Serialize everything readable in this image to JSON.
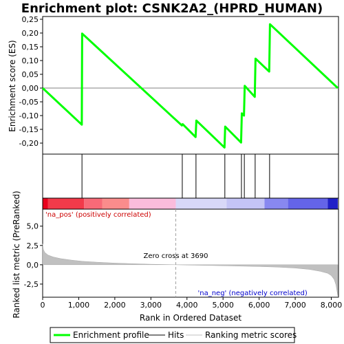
{
  "chart_data": {
    "type": "line",
    "title": "Enrichment plot: CSNK2A2_(HPRD_HUMAN)",
    "xlabel": "Rank in Ordered Dataset",
    "ylabel_top": "Enrichment score (ES)",
    "ylabel_bottom": "Ranked list metric (PreRanked)",
    "x_ticks": [
      "0",
      "1,000",
      "2,000",
      "3,000",
      "4,000",
      "5,000",
      "6,000",
      "7,000",
      "8,000"
    ],
    "x_tick_values": [
      0,
      1000,
      2000,
      3000,
      4000,
      5000,
      6000,
      7000,
      8000
    ],
    "xlim": [
      0,
      8200
    ],
    "es_ylim": [
      -0.24,
      0.26
    ],
    "es_ticks": [
      "0,25",
      "0,20",
      "0,15",
      "0,10",
      "0,05",
      "0,00",
      "-0,05",
      "-0,10",
      "-0,15",
      "-0,20"
    ],
    "es_tick_values": [
      0.25,
      0.2,
      0.15,
      0.1,
      0.05,
      0.0,
      -0.05,
      -0.1,
      -0.15,
      -0.2
    ],
    "metric_ylim": [
      -4.2,
      7.2
    ],
    "metric_ticks": [
      "5,0",
      "2,5",
      "0,0",
      "-2,5"
    ],
    "metric_tick_values": [
      5.0,
      2.5,
      0.0,
      -2.5
    ],
    "series": [
      {
        "name": "Enrichment profile",
        "color": "#00ff00",
        "x": [
          0,
          1085,
          1095,
          3860,
          3880,
          4240,
          4260,
          5040,
          5060,
          5500,
          5520,
          5580,
          5600,
          5880,
          5900,
          6280,
          6300,
          8180
        ],
        "y": [
          0.0,
          -0.133,
          0.198,
          -0.136,
          -0.131,
          -0.178,
          -0.118,
          -0.216,
          -0.14,
          -0.198,
          -0.092,
          -0.1,
          0.008,
          -0.032,
          0.107,
          0.06,
          0.232,
          0.0
        ]
      }
    ],
    "hits": [
      1090,
      3870,
      4250,
      5050,
      5510,
      5590,
      5890,
      6290
    ],
    "hit_color": "#000000",
    "metric_color": "#c0c0c0",
    "metric_points": {
      "x": [
        0,
        20,
        60,
        150,
        300,
        500,
        800,
        1100,
        1500,
        2000,
        2500,
        3000,
        3690,
        4200,
        5000,
        5500,
        6000,
        6500,
        7000,
        7400,
        7700,
        7900,
        8000,
        8080,
        8130,
        8180
      ],
      "y": [
        2.7,
        2.0,
        1.6,
        1.25,
        1.0,
        0.8,
        0.6,
        0.45,
        0.33,
        0.22,
        0.14,
        0.07,
        0.0,
        -0.05,
        -0.12,
        -0.17,
        -0.23,
        -0.3,
        -0.42,
        -0.6,
        -0.85,
        -1.1,
        -1.4,
        -1.9,
        -2.6,
        -4.0
      ]
    },
    "zero_cross_value": 3690,
    "zero_cross_label": "Zero cross at 3690",
    "pos_label": "'na_pos' (positively correlated)",
    "neg_label": "'na_neg' (negatively correlated)",
    "pos_label_color": "#cc0000",
    "neg_label_color": "#0000cc",
    "bar_segments": [
      {
        "x0": 0,
        "x1": 150,
        "color": "#e8001c"
      },
      {
        "x0": 150,
        "x1": 1150,
        "color": "#f23a4a"
      },
      {
        "x0": 1150,
        "x1": 1650,
        "color": "#f86a78"
      },
      {
        "x0": 1650,
        "x1": 2400,
        "color": "#fb8c8c"
      },
      {
        "x0": 2400,
        "x1": 3690,
        "color": "#fbbcdc"
      },
      {
        "x0": 3690,
        "x1": 5100,
        "color": "#d8d8f8"
      },
      {
        "x0": 5100,
        "x1": 6150,
        "color": "#c4c4f6"
      },
      {
        "x0": 6150,
        "x1": 6800,
        "color": "#8888f0"
      },
      {
        "x0": 6800,
        "x1": 7900,
        "color": "#6464e8"
      },
      {
        "x0": 7900,
        "x1": 8180,
        "color": "#2020c8"
      }
    ],
    "legend": [
      {
        "label": "Enrichment profile",
        "color": "#00ff00",
        "style": "thick"
      },
      {
        "label": "Hits",
        "color": "#000000",
        "style": "thin"
      },
      {
        "label": "Ranking metric scores",
        "color": "#c0c0c0",
        "style": "thin"
      }
    ],
    "legend_placement": "bottom"
  }
}
